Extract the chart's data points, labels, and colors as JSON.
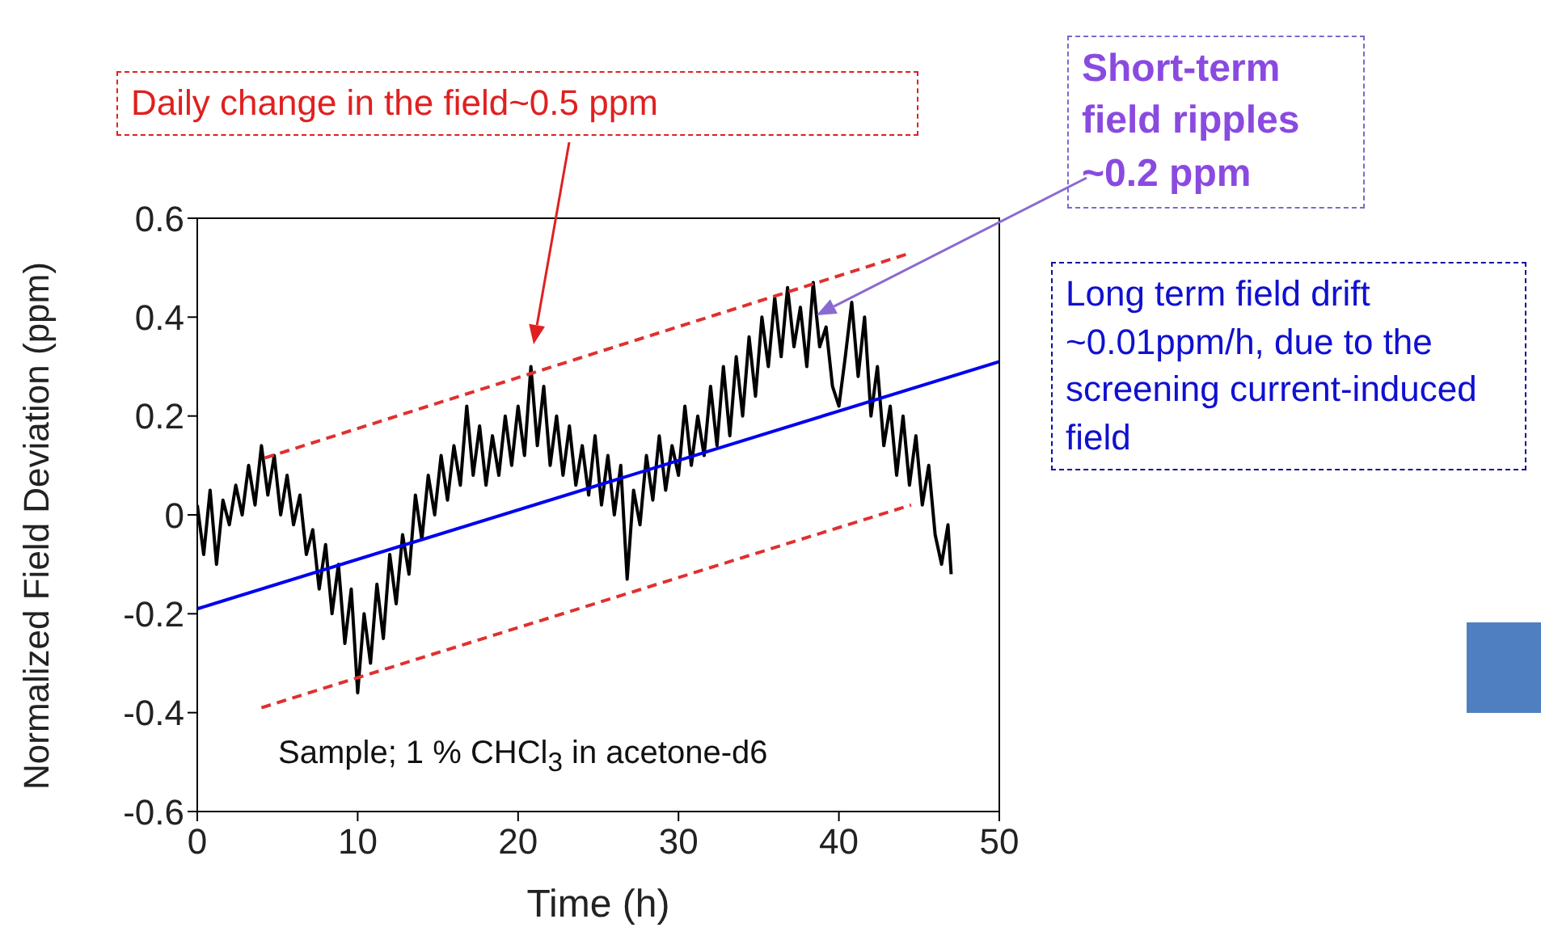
{
  "chart_data": {
    "type": "line",
    "xlabel": "Time (h)",
    "ylabel": "Normalized Field Deviation (ppm)",
    "xlim": [
      0,
      50
    ],
    "xticks": [
      0,
      10,
      20,
      30,
      40,
      50
    ],
    "ylim": [
      -0.6,
      0.6
    ],
    "yticks": [
      {
        "value": -0.6,
        "label": "-0.6"
      },
      {
        "value": -0.4,
        "label": "-0.4"
      },
      {
        "value": -0.2,
        "label": "-0.2"
      },
      {
        "value": 0,
        "label": "0"
      },
      {
        "value": 0.2,
        "label": "0.2"
      },
      {
        "value": 0.4,
        "label": "0.4"
      },
      {
        "value": 0.6,
        "label": "0.6"
      }
    ],
    "marker": "none",
    "series": [
      {
        "color": "#000000",
        "x": [
          0,
          0.4,
          0.8,
          1.2,
          1.6,
          2,
          2.4,
          2.8,
          3.2,
          3.6,
          4,
          4.4,
          4.8,
          5.2,
          5.6,
          6,
          6.4,
          6.8,
          7.2,
          7.6,
          8,
          8.4,
          8.8,
          9.2,
          9.6,
          10,
          10.4,
          10.8,
          11.2,
          11.6,
          12,
          12.4,
          12.8,
          13.2,
          13.6,
          14,
          14.4,
          14.8,
          15.2,
          15.6,
          16,
          16.4,
          16.8,
          17.2,
          17.6,
          18,
          18.4,
          18.8,
          19.2,
          19.6,
          20,
          20.4,
          20.8,
          21.2,
          21.6,
          22,
          22.4,
          22.8,
          23.2,
          23.6,
          24,
          24.4,
          24.8,
          25.2,
          25.6,
          26,
          26.4,
          26.8,
          27.2,
          27.6,
          28,
          28.4,
          28.8,
          29.2,
          29.6,
          30,
          30.4,
          30.8,
          31.2,
          31.6,
          32,
          32.4,
          32.8,
          33.2,
          33.6,
          34,
          34.4,
          34.8,
          35.2,
          35.6,
          36,
          36.4,
          36.8,
          37.2,
          37.6,
          38,
          38.4,
          38.8,
          39.2,
          39.6,
          40,
          40.4,
          40.8,
          41.2,
          41.6,
          42,
          42.4,
          42.8,
          43.2,
          43.6,
          44,
          44.4,
          44.8,
          45.2,
          45.6,
          46,
          46.4,
          46.8,
          47
        ],
        "values": [
          0.02,
          -0.08,
          0.05,
          -0.1,
          0.03,
          -0.02,
          0.06,
          0,
          0.1,
          0.02,
          0.14,
          0.04,
          0.12,
          0,
          0.08,
          -0.02,
          0.04,
          -0.08,
          -0.03,
          -0.15,
          -0.06,
          -0.2,
          -0.1,
          -0.26,
          -0.15,
          -0.36,
          -0.2,
          -0.3,
          -0.14,
          -0.25,
          -0.08,
          -0.18,
          -0.04,
          -0.12,
          0.04,
          -0.05,
          0.08,
          0,
          0.12,
          0.03,
          0.14,
          0.06,
          0.22,
          0.08,
          0.18,
          0.06,
          0.16,
          0.08,
          0.2,
          0.1,
          0.22,
          0.12,
          0.3,
          0.14,
          0.26,
          0.1,
          0.2,
          0.08,
          0.18,
          0.06,
          0.14,
          0.04,
          0.16,
          0.02,
          0.12,
          0,
          0.1,
          -0.13,
          0.05,
          -0.02,
          0.12,
          0.03,
          0.16,
          0.05,
          0.14,
          0.08,
          0.22,
          0.1,
          0.2,
          0.12,
          0.26,
          0.14,
          0.3,
          0.16,
          0.32,
          0.2,
          0.36,
          0.24,
          0.4,
          0.3,
          0.44,
          0.32,
          0.46,
          0.34,
          0.42,
          0.3,
          0.47,
          0.34,
          0.38,
          0.26,
          0.22,
          0.32,
          0.43,
          0.28,
          0.4,
          0.2,
          0.3,
          0.14,
          0.22,
          0.08,
          0.2,
          0.06,
          0.16,
          0.02,
          0.1,
          -0.04,
          -0.1,
          -0.02,
          -0.12
        ]
      },
      {
        "type": "line",
        "color": "#0000ee",
        "x": [
          0,
          50
        ],
        "values": [
          -0.19,
          0.31
        ]
      },
      {
        "type": "line",
        "color": "#e03030",
        "line_style": "dashed",
        "x": [
          4.2,
          44.5
        ],
        "values": [
          0.115,
          0.53
        ]
      },
      {
        "type": "line",
        "color": "#e03030",
        "line_style": "dashed",
        "x": [
          4,
          44.5
        ],
        "values": [
          -0.39,
          0.02
        ]
      }
    ],
    "annotations": [
      "Daily change in the field~0.5 ppm",
      "Short-term field ripples ~0.2 ppm",
      "Long term field drift ~0.01ppm/h, due to the screening current-induced field",
      "Sample; 1 % CHCl$_{3}$ in acetone-d6"
    ]
  }
}
